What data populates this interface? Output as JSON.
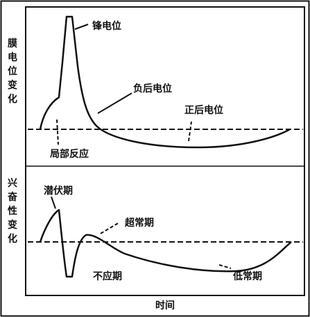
{
  "membrane_section": {
    "axis_label": [
      "膜",
      "电",
      "位",
      "变",
      "化"
    ],
    "labels": {
      "spike": "锋电位",
      "negative_after": "负后电位",
      "positive_after": "正后电位",
      "local_response": "局部反应"
    }
  },
  "excitability_section": {
    "axis_label": [
      "兴",
      "奋",
      "性",
      "变",
      "化"
    ],
    "labels": {
      "latent": "潜伏期",
      "supernormal": "超常期",
      "refractory": "不应期",
      "subnormal": "低常期"
    }
  },
  "x_axis_label": "时间"
}
